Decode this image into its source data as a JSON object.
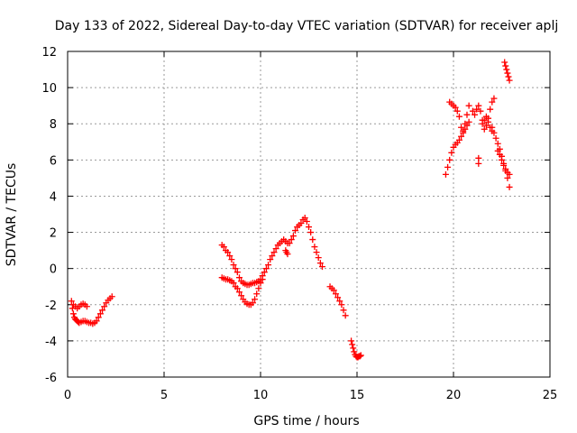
{
  "chart_data": {
    "type": "scatter",
    "title": "Day 133 of 2022, Sidereal Day-to-day VTEC variation (SDTVAR) for receiver aplj",
    "xlabel": "GPS time / hours",
    "ylabel": "SDTVAR / TECUs",
    "xlim": [
      0,
      25
    ],
    "ylim": [
      -6,
      12
    ],
    "xticks": [
      0,
      5,
      10,
      15,
      20,
      25
    ],
    "yticks": [
      -6,
      -4,
      -2,
      0,
      2,
      4,
      6,
      8,
      10,
      12
    ],
    "grid": true,
    "marker": "+",
    "color": "#ff0000",
    "series": [
      {
        "name": "SDTVAR",
        "x": [
          0.2,
          0.25,
          0.3,
          0.35,
          0.4,
          0.45,
          0.5,
          0.55,
          0.6,
          0.7,
          0.8,
          0.9,
          1.0,
          1.1,
          1.2,
          1.3,
          1.4,
          1.5,
          1.6,
          1.7,
          1.8,
          1.9,
          2.0,
          2.1,
          2.2,
          2.3,
          0.3,
          0.4,
          0.5,
          0.6,
          0.7,
          0.8,
          0.9,
          1.0,
          8.0,
          8.1,
          8.2,
          8.3,
          8.4,
          8.5,
          8.6,
          8.7,
          8.8,
          8.9,
          9.0,
          9.1,
          9.2,
          9.3,
          9.4,
          9.5,
          9.6,
          9.7,
          9.8,
          9.9,
          10.0,
          10.1,
          10.2,
          10.3,
          10.4,
          10.5,
          10.6,
          10.7,
          10.8,
          10.9,
          11.0,
          11.1,
          11.2,
          11.3,
          11.4,
          11.5,
          11.6,
          11.7,
          11.8,
          11.9,
          12.0,
          12.1,
          12.2,
          12.3,
          12.4,
          12.5,
          12.6,
          12.7,
          12.8,
          12.9,
          13.0,
          13.1,
          13.2,
          8.0,
          8.1,
          8.2,
          8.3,
          8.4,
          8.5,
          8.6,
          8.7,
          8.8,
          8.9,
          9.0,
          9.1,
          9.2,
          9.3,
          9.4,
          9.5,
          9.6,
          9.7,
          9.8,
          9.9,
          10.0,
          10.1,
          11.3,
          11.35,
          11.4,
          13.6,
          13.7,
          13.8,
          13.9,
          14.0,
          14.1,
          14.2,
          14.3,
          14.4,
          14.7,
          14.75,
          14.8,
          14.85,
          14.9,
          14.95,
          15.0,
          15.05,
          15.1,
          15.15,
          15.2,
          19.6,
          19.7,
          19.8,
          19.9,
          20.0,
          20.1,
          20.2,
          20.3,
          20.4,
          20.5,
          20.6,
          20.7,
          20.8,
          19.8,
          19.9,
          20.0,
          20.1,
          20.2,
          20.3,
          20.4,
          20.5,
          20.6,
          20.7,
          20.8,
          21.0,
          21.1,
          21.2,
          21.3,
          21.4,
          21.5,
          21.6,
          21.7,
          21.8,
          21.9,
          22.0,
          22.1,
          21.3,
          21.3,
          21.5,
          21.6,
          21.7,
          21.8,
          21.9,
          22.0,
          22.0,
          22.1,
          22.2,
          22.3,
          22.4,
          22.5,
          22.6,
          22.7,
          22.8,
          22.9,
          22.3,
          22.4,
          22.5,
          22.6,
          22.7,
          22.8,
          22.9,
          22.65,
          22.7,
          22.75,
          22.8,
          22.85,
          22.9
        ],
        "y": [
          -1.8,
          -2.2,
          -2.5,
          -2.7,
          -2.8,
          -2.85,
          -2.9,
          -2.95,
          -3.0,
          -2.95,
          -2.9,
          -2.9,
          -2.95,
          -3.0,
          -3.0,
          -3.05,
          -3.0,
          -2.9,
          -2.7,
          -2.5,
          -2.3,
          -2.1,
          -1.9,
          -1.75,
          -1.65,
          -1.55,
          -2.0,
          -2.1,
          -2.2,
          -2.1,
          -2.0,
          -1.95,
          -2.0,
          -2.1,
          1.3,
          1.2,
          1.0,
          0.9,
          0.7,
          0.5,
          0.2,
          0.0,
          -0.2,
          -0.5,
          -0.7,
          -0.8,
          -0.85,
          -0.9,
          -0.9,
          -0.85,
          -0.8,
          -0.8,
          -0.75,
          -0.7,
          -0.6,
          -0.4,
          -0.2,
          0.0,
          0.2,
          0.5,
          0.7,
          0.9,
          1.1,
          1.3,
          1.4,
          1.5,
          1.6,
          1.5,
          1.4,
          1.4,
          1.6,
          1.8,
          2.1,
          2.3,
          2.4,
          2.5,
          2.7,
          2.8,
          2.6,
          2.3,
          2.0,
          1.6,
          1.2,
          0.9,
          0.6,
          0.3,
          0.1,
          -0.5,
          -0.55,
          -0.6,
          -0.6,
          -0.65,
          -0.7,
          -0.8,
          -1.0,
          -1.1,
          -1.3,
          -1.5,
          -1.7,
          -1.85,
          -1.95,
          -2.0,
          -2.0,
          -1.9,
          -1.7,
          -1.4,
          -1.1,
          -0.8,
          -0.6,
          1.0,
          0.9,
          0.8,
          -1.0,
          -1.1,
          -1.2,
          -1.4,
          -1.6,
          -1.8,
          -2.0,
          -2.3,
          -2.6,
          -4.0,
          -4.2,
          -4.4,
          -4.6,
          -4.75,
          -4.85,
          -4.9,
          -4.9,
          -4.85,
          -4.85,
          -4.8,
          5.2,
          5.6,
          6.0,
          6.4,
          6.7,
          6.85,
          6.95,
          7.1,
          7.3,
          7.5,
          7.7,
          7.9,
          8.1,
          9.2,
          9.1,
          9.0,
          8.9,
          8.7,
          8.4,
          7.8,
          7.6,
          8.0,
          8.5,
          9.0,
          8.7,
          8.5,
          8.8,
          9.0,
          8.7,
          8.2,
          7.7,
          7.9,
          8.3,
          8.8,
          9.2,
          9.4,
          6.1,
          5.8,
          8.0,
          8.2,
          8.4,
          8.1,
          7.8,
          7.6,
          7.8,
          7.5,
          7.2,
          6.9,
          6.6,
          6.2,
          5.8,
          5.4,
          5.0,
          4.5,
          6.5,
          6.3,
          6.0,
          5.7,
          5.5,
          5.3,
          5.2,
          11.4,
          11.2,
          11.0,
          10.8,
          10.6,
          10.4
        ]
      }
    ]
  }
}
